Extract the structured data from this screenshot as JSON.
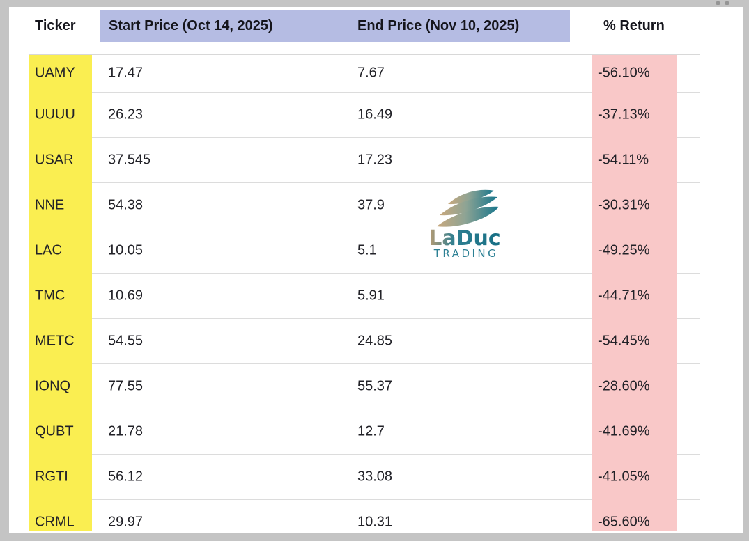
{
  "chart_data": {
    "type": "table",
    "title": "",
    "columns": [
      "Ticker",
      "Start Price (Oct 14, 2025)",
      "End Price (Nov 10, 2025)",
      "% Return"
    ],
    "rows": [
      [
        "UAMY",
        "17.47",
        "7.67",
        "-56.10%"
      ],
      [
        "UUUU",
        "26.23",
        "16.49",
        "-37.13%"
      ],
      [
        "USAR",
        "37.545",
        "17.23",
        "-54.11%"
      ],
      [
        "NNE",
        "54.38",
        "37.9",
        "-30.31%"
      ],
      [
        "LAC",
        "10.05",
        "5.1",
        "-49.25%"
      ],
      [
        "TMC",
        "10.69",
        "5.91",
        "-44.71%"
      ],
      [
        "METC",
        "54.55",
        "24.85",
        "-54.45%"
      ],
      [
        "IONQ",
        "77.55",
        "55.37",
        "-28.60%"
      ],
      [
        "QUBT",
        "21.78",
        "12.7",
        "-41.69%"
      ],
      [
        "RGTI",
        "56.12",
        "33.08",
        "-41.05%"
      ],
      [
        "CRML",
        "29.97",
        "10.31",
        "-65.60%"
      ]
    ],
    "layout_hints": {
      "ticker_column_highlighted": true,
      "return_column_highlighted": true,
      "price_headers_highlighted": true,
      "grid": "horizontal-separators-only"
    }
  },
  "watermark": {
    "name": "LaDuc",
    "tagline": "TRADING"
  },
  "colors": {
    "ticker_highlight": "#FAEE51",
    "return_highlight": "#F9C8C8",
    "header_highlight": "#B5BCE3",
    "frame": "#C4C4C4",
    "logo_teal": "#1A768B",
    "logo_tan": "#C8A87D"
  }
}
